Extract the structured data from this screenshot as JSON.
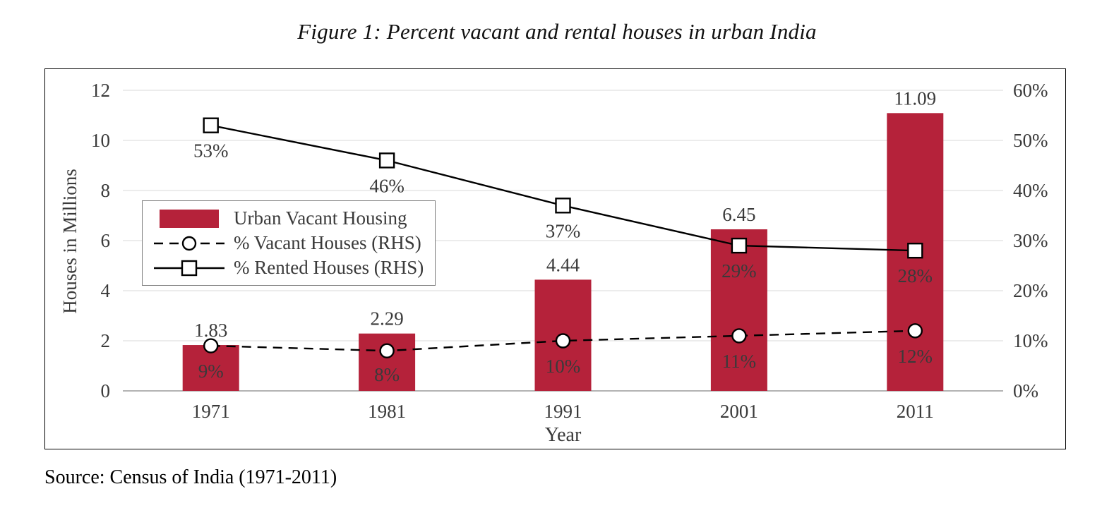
{
  "title": "Figure 1: Percent vacant and rental houses in urban India",
  "source": "Source: Census of India (1971-2011)",
  "chart_data": {
    "type": "bar",
    "subtype": "combo bar + two lines (secondary axis)",
    "categories": [
      "1971",
      "1981",
      "1991",
      "2001",
      "2011"
    ],
    "series": [
      {
        "name": "Urban Vacant Housing",
        "type": "bar",
        "axis": "left",
        "color": "#b5223a",
        "values": [
          1.83,
          2.29,
          4.44,
          6.45,
          11.09
        ],
        "labels": [
          "1.83",
          "2.29",
          "4.44",
          "6.45",
          "11.09"
        ]
      },
      {
        "name": "% Vacant Houses (RHS)",
        "type": "line",
        "style": "dashed",
        "marker": "circle",
        "axis": "right",
        "color": "#000000",
        "values": [
          9,
          8,
          10,
          11,
          12
        ],
        "labels": [
          "9%",
          "8%",
          "10%",
          "11%",
          "12%"
        ]
      },
      {
        "name": "% Rented Houses (RHS)",
        "type": "line",
        "style": "solid",
        "marker": "square",
        "axis": "right",
        "color": "#000000",
        "values": [
          53,
          46,
          37,
          29,
          28
        ],
        "labels": [
          "53%",
          "46%",
          "37%",
          "29%",
          "28%"
        ]
      }
    ],
    "left_axis": {
      "label": "Houses in Millions",
      "min": 0,
      "max": 12,
      "step": 2,
      "ticks": [
        "0",
        "2",
        "4",
        "6",
        "8",
        "10",
        "12"
      ]
    },
    "right_axis": {
      "min": 0,
      "max": 60,
      "step": 10,
      "ticks": [
        "0%",
        "10%",
        "20%",
        "30%",
        "40%",
        "50%",
        "60%"
      ]
    },
    "x_axis": {
      "label": "Year"
    },
    "legend": {
      "position": "upper-left",
      "entries": [
        "Urban Vacant Housing",
        "% Vacant Houses (RHS)",
        "% Rented Houses (RHS)"
      ]
    },
    "grid": "horizontal"
  }
}
